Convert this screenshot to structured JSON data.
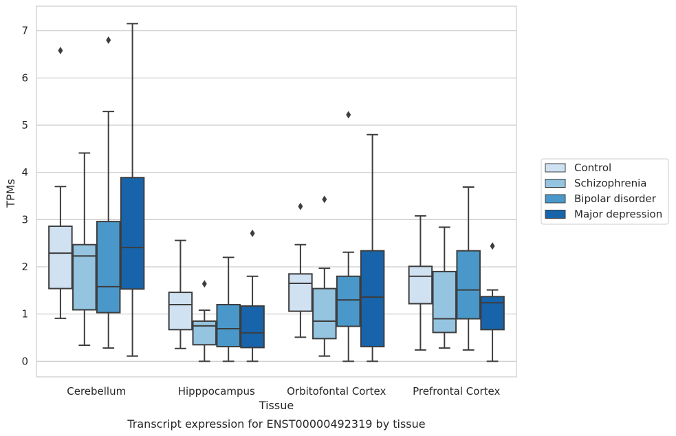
{
  "caption": "Transcript expression for ENST00000492319 by tissue",
  "chart_data": {
    "type": "box",
    "xlabel": "Tissue",
    "ylabel": "TPMs",
    "ylim": [
      -0.33,
      7.52
    ],
    "yticks": [
      0,
      1,
      2,
      3,
      4,
      5,
      6,
      7
    ],
    "grid": "horizontal",
    "legend_position": "right",
    "categories": [
      "Cerebellum",
      "Hipppocampus",
      "Orbitofontal Cortex",
      "Prefrontal Cortex"
    ],
    "series": [
      {
        "name": "Control",
        "color": "#d0e1f2",
        "boxes": [
          {
            "whisker_low": 0.91,
            "q1": 1.54,
            "median": 2.29,
            "q3": 2.86,
            "whisker_high": 3.7,
            "outliers": [
              6.58
            ]
          },
          {
            "whisker_low": 0.27,
            "q1": 0.67,
            "median": 1.2,
            "q3": 1.46,
            "whisker_high": 2.56,
            "outliers": []
          },
          {
            "whisker_low": 0.51,
            "q1": 1.06,
            "median": 1.65,
            "q3": 1.85,
            "whisker_high": 2.47,
            "outliers": [
              3.28
            ]
          },
          {
            "whisker_low": 0.24,
            "q1": 1.22,
            "median": 1.8,
            "q3": 2.01,
            "whisker_high": 3.08,
            "outliers": []
          }
        ]
      },
      {
        "name": "Schizophrenia",
        "color": "#94c4df",
        "boxes": [
          {
            "whisker_low": 0.34,
            "q1": 1.09,
            "median": 2.23,
            "q3": 2.47,
            "whisker_high": 4.41,
            "outliers": []
          },
          {
            "whisker_low": 0.0,
            "q1": 0.35,
            "median": 0.75,
            "q3": 0.85,
            "whisker_high": 1.08,
            "outliers": [
              1.64
            ]
          },
          {
            "whisker_low": 0.11,
            "q1": 0.48,
            "median": 0.85,
            "q3": 1.54,
            "whisker_high": 1.97,
            "outliers": [
              3.43
            ]
          },
          {
            "whisker_low": 0.28,
            "q1": 0.61,
            "median": 0.9,
            "q3": 1.9,
            "whisker_high": 2.84,
            "outliers": []
          }
        ]
      },
      {
        "name": "Bipolar disorder",
        "color": "#4a98c9",
        "boxes": [
          {
            "whisker_low": 0.28,
            "q1": 1.03,
            "median": 1.58,
            "q3": 2.96,
            "whisker_high": 5.29,
            "outliers": [
              6.8
            ]
          },
          {
            "whisker_low": 0.0,
            "q1": 0.31,
            "median": 0.69,
            "q3": 1.2,
            "whisker_high": 2.2,
            "outliers": []
          },
          {
            "whisker_low": 0.0,
            "q1": 0.74,
            "median": 1.3,
            "q3": 1.8,
            "whisker_high": 2.31,
            "outliers": [
              5.22
            ]
          },
          {
            "whisker_low": 0.24,
            "q1": 0.9,
            "median": 1.51,
            "q3": 2.34,
            "whisker_high": 3.69,
            "outliers": []
          }
        ]
      },
      {
        "name": "Major depression",
        "color": "#1764ab",
        "boxes": [
          {
            "whisker_low": 0.11,
            "q1": 1.53,
            "median": 2.41,
            "q3": 3.89,
            "whisker_high": 7.15,
            "outliers": []
          },
          {
            "whisker_low": 0.0,
            "q1": 0.29,
            "median": 0.6,
            "q3": 1.17,
            "whisker_high": 1.8,
            "outliers": [
              2.71
            ]
          },
          {
            "whisker_low": 0.0,
            "q1": 0.31,
            "median": 1.36,
            "q3": 2.34,
            "whisker_high": 4.8,
            "outliers": []
          },
          {
            "whisker_low": 0.0,
            "q1": 0.67,
            "median": 1.24,
            "q3": 1.37,
            "whisker_high": 1.51,
            "outliers": [
              2.44
            ]
          }
        ]
      }
    ]
  }
}
